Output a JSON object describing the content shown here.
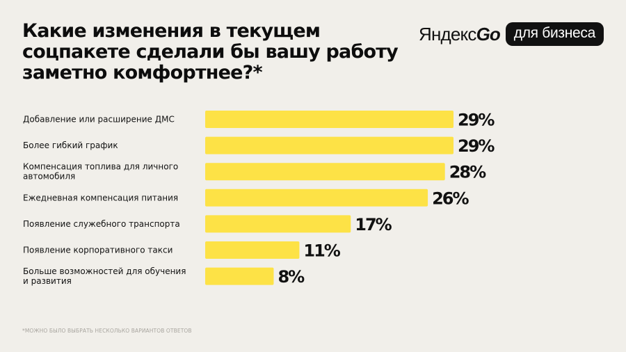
{
  "title": "Какие изменения в текущем соцпакете сделали бы вашу работу заметно комфортнее?*",
  "brand": {
    "name_prefix": "Яндекс",
    "name_suffix": "Go",
    "badge": "для бизнеса"
  },
  "footnote": "*МОЖНО БЫЛО ВЫБРАТЬ НЕСКОЛЬКО ВАРИАНТОВ ОТВЕТОВ",
  "colors": {
    "bar": "#fde246",
    "background": "#f1efea",
    "text": "#111111"
  },
  "chart_data": {
    "type": "bar",
    "orientation": "horizontal",
    "categories": [
      [
        "Добавление или расширение ДМС"
      ],
      [
        "Более гибкий график"
      ],
      [
        "Компенсация топлива для личного",
        "автомобиля"
      ],
      [
        "Ежедневная компенсация питания"
      ],
      [
        "Появление служебного транспорта"
      ],
      [
        "Появление корпоративного такси"
      ],
      [
        "Больше возможностей для обучения",
        "и развития"
      ]
    ],
    "values": [
      29,
      29,
      28,
      26,
      17,
      11,
      8
    ],
    "value_labels": [
      "29%",
      "29%",
      "28%",
      "26%",
      "17%",
      "11%",
      "8%"
    ],
    "unit": "%",
    "xlim": [
      0,
      29
    ],
    "grid": false,
    "legend": "none"
  }
}
